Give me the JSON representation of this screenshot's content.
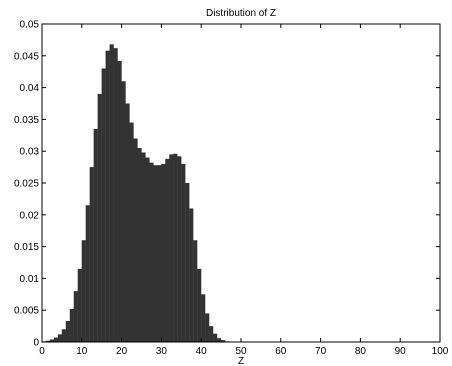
{
  "chart_data": {
    "type": "bar",
    "title": "Distribution of Z",
    "xlabel": "Z",
    "ylabel": "",
    "xlim": [
      0,
      100
    ],
    "ylim": [
      0,
      0.05
    ],
    "xticks": [
      "0",
      "10",
      "20",
      "30",
      "40",
      "50",
      "60",
      "70",
      "80",
      "90",
      "100"
    ],
    "yticks": [
      "0",
      "0.005",
      "0.01",
      "0.015",
      "0.02",
      "0.025",
      "0.03",
      "0.035",
      "0.04",
      "0.045",
      "0.05"
    ],
    "bar_color": "#333333",
    "grid": false,
    "x": [
      0,
      1,
      2,
      3,
      4,
      5,
      6,
      7,
      8,
      9,
      10,
      11,
      12,
      13,
      14,
      15,
      16,
      17,
      18,
      19,
      20,
      21,
      22,
      23,
      24,
      25,
      26,
      27,
      28,
      29,
      30,
      31,
      32,
      33,
      34,
      35,
      36,
      37,
      38,
      39,
      40,
      41,
      42,
      43,
      44,
      45,
      46,
      47,
      48,
      49,
      50
    ],
    "values": [
      0.0001,
      0.0002,
      0.0004,
      0.0007,
      0.0012,
      0.002,
      0.0033,
      0.0052,
      0.008,
      0.0115,
      0.016,
      0.0215,
      0.0275,
      0.0335,
      0.039,
      0.043,
      0.0458,
      0.0468,
      0.0462,
      0.0442,
      0.041,
      0.0375,
      0.0345,
      0.032,
      0.0305,
      0.0298,
      0.029,
      0.0282,
      0.0278,
      0.0278,
      0.028,
      0.0288,
      0.0295,
      0.0296,
      0.0292,
      0.028,
      0.025,
      0.021,
      0.016,
      0.0115,
      0.0075,
      0.0045,
      0.0025,
      0.0013,
      0.0006,
      0.0003,
      0.0001,
      5e-05,
      2e-05,
      1e-05,
      0
    ]
  }
}
